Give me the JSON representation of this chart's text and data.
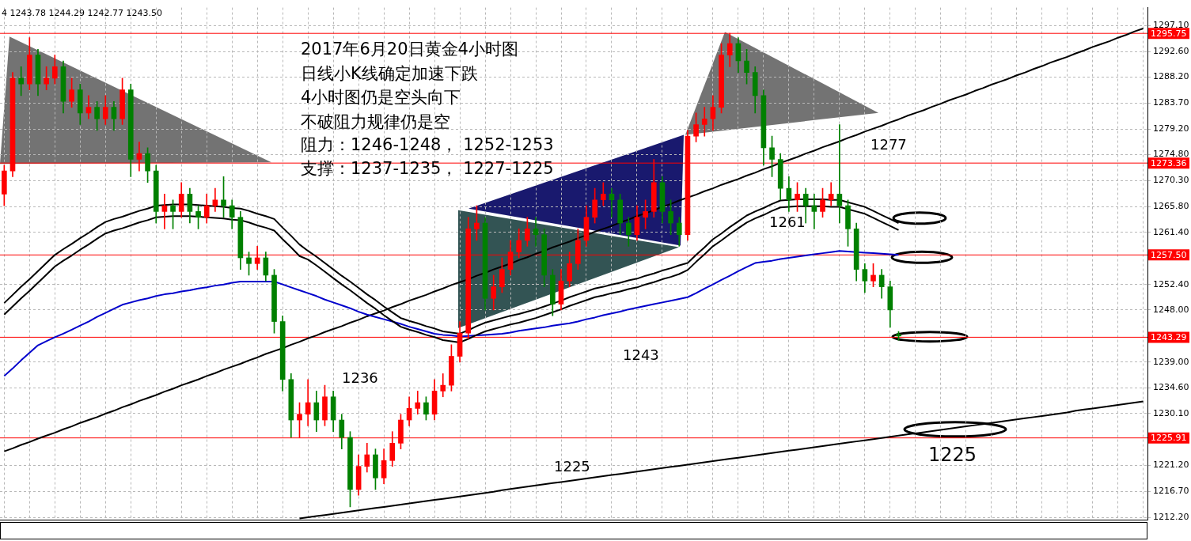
{
  "chart_data": {
    "type": "candlestick",
    "title": "2017年6月20日黄金4小时图",
    "annotations": [
      "4 1243.78 1244.29 1242.77 1243.50",
      "日线小K线确定加速下跌",
      "4小时图仍是空头向下",
      "不破阻力规律仍是空",
      "阻力：1246-1248， 1252-1253",
      "支撑：1237-1235， 1227-1225",
      "1277",
      "1261",
      "1243",
      "1236",
      "1225",
      "1225"
    ],
    "categories": [
      null,
      null,
      null,
      null,
      null,
      null,
      null,
      null,
      null,
      null,
      null,
      null,
      null,
      null,
      null,
      null,
      null,
      null,
      null,
      null,
      null,
      null,
      null,
      null,
      null,
      null,
      null,
      null,
      null,
      null,
      null,
      null,
      null,
      null,
      null,
      null,
      null,
      null,
      null,
      null,
      null,
      null,
      null,
      null,
      null,
      null,
      null,
      null,
      null,
      null,
      null,
      null,
      null,
      null,
      null,
      null,
      null,
      null,
      null,
      null,
      null,
      null,
      null,
      null,
      null,
      null,
      null,
      null,
      null,
      null,
      null,
      null,
      null,
      null,
      null,
      null,
      null,
      null,
      null,
      null,
      null,
      null,
      null,
      null,
      null,
      null,
      null,
      null,
      null,
      null,
      null,
      null,
      null,
      null,
      null,
      null,
      null,
      null,
      null,
      null,
      null,
      null,
      null,
      null,
      null,
      null,
      null,
      null,
      null,
      null,
      null,
      null,
      null,
      null,
      null,
      null,
      null,
      null,
      null,
      null,
      null,
      null,
      null,
      null,
      null,
      null,
      null,
      null,
      null,
      null,
      null,
      null,
      null,
      null,
      null,
      null
    ],
    "ohlc": [
      [
        1268,
        1273,
        1266,
        1272
      ],
      [
        1272,
        1289,
        1271,
        1288
      ],
      [
        1288,
        1290,
        1285,
        1287
      ],
      [
        1287,
        1295,
        1286,
        1292
      ],
      [
        1292,
        1293,
        1285,
        1287
      ],
      [
        1287,
        1290,
        1286,
        1288
      ],
      [
        1288,
        1292,
        1287,
        1290
      ],
      [
        1290,
        1291,
        1282,
        1284
      ],
      [
        1284,
        1288,
        1283,
        1286
      ],
      [
        1286,
        1287,
        1280,
        1282
      ],
      [
        1282,
        1285,
        1281,
        1283
      ],
      [
        1283,
        1284,
        1279,
        1281
      ],
      [
        1281,
        1285,
        1280,
        1283
      ],
      [
        1283,
        1284,
        1279,
        1281
      ],
      [
        1281,
        1288,
        1280,
        1286
      ],
      [
        1286,
        1287,
        1271,
        1274
      ],
      [
        1274,
        1277,
        1272,
        1275
      ],
      [
        1275,
        1276,
        1270,
        1272
      ],
      [
        1272,
        1273,
        1263,
        1265
      ],
      [
        1265,
        1268,
        1262,
        1266
      ],
      [
        1266,
        1267,
        1262,
        1265
      ],
      [
        1265,
        1270,
        1264,
        1268
      ],
      [
        1268,
        1269,
        1263,
        1265
      ],
      [
        1265,
        1266,
        1262,
        1264
      ],
      [
        1264,
        1268,
        1263,
        1266
      ],
      [
        1266,
        1269,
        1265,
        1267
      ],
      [
        1267,
        1271,
        1264,
        1266
      ],
      [
        1266,
        1267,
        1262,
        1264
      ],
      [
        1264,
        1265,
        1255,
        1257
      ],
      [
        1257,
        1258,
        1254,
        1256
      ],
      [
        1256,
        1259,
        1255,
        1257
      ],
      [
        1257,
        1258,
        1253,
        1254
      ],
      [
        1254,
        1255,
        1244,
        1246
      ],
      [
        1246,
        1247,
        1234,
        1236
      ],
      [
        1236,
        1237,
        1226,
        1229
      ],
      [
        1229,
        1232,
        1226,
        1230
      ],
      [
        1230,
        1236,
        1228,
        1232
      ],
      [
        1232,
        1234,
        1227,
        1229
      ],
      [
        1229,
        1235,
        1228,
        1233
      ],
      [
        1233,
        1234,
        1227,
        1229
      ],
      [
        1229,
        1230,
        1224,
        1226
      ],
      [
        1226,
        1227,
        1214,
        1217
      ],
      [
        1217,
        1223,
        1216,
        1221
      ],
      [
        1221,
        1225,
        1220,
        1223
      ],
      [
        1223,
        1224,
        1217,
        1219
      ],
      [
        1219,
        1224,
        1218,
        1222
      ],
      [
        1222,
        1227,
        1221,
        1225
      ],
      [
        1225,
        1230,
        1224,
        1229
      ],
      [
        1229,
        1233,
        1228,
        1231
      ],
      [
        1231,
        1234,
        1230,
        1232
      ],
      [
        1232,
        1233,
        1229,
        1230
      ],
      [
        1230,
        1236,
        1229,
        1234
      ],
      [
        1234,
        1237,
        1233,
        1235
      ],
      [
        1235,
        1242,
        1234,
        1240
      ],
      [
        1240,
        1246,
        1239,
        1244
      ],
      [
        1244,
        1264,
        1243,
        1262
      ],
      [
        1262,
        1266,
        1260,
        1263
      ],
      [
        1263,
        1264,
        1248,
        1250
      ],
      [
        1250,
        1254,
        1248,
        1252
      ],
      [
        1252,
        1257,
        1251,
        1255
      ],
      [
        1255,
        1260,
        1254,
        1258
      ],
      [
        1258,
        1262,
        1257,
        1260
      ],
      [
        1260,
        1264,
        1259,
        1262
      ],
      [
        1262,
        1264,
        1259,
        1261
      ],
      [
        1261,
        1262,
        1252,
        1254
      ],
      [
        1254,
        1255,
        1247,
        1249
      ],
      [
        1249,
        1255,
        1248,
        1253
      ],
      [
        1253,
        1258,
        1252,
        1256
      ],
      [
        1256,
        1262,
        1255,
        1260
      ],
      [
        1260,
        1266,
        1259,
        1264
      ],
      [
        1264,
        1269,
        1263,
        1267
      ],
      [
        1267,
        1270,
        1266,
        1268
      ],
      [
        1268,
        1269,
        1264,
        1267
      ],
      [
        1267,
        1268,
        1261,
        1263
      ],
      [
        1263,
        1264,
        1259,
        1261
      ],
      [
        1261,
        1266,
        1260,
        1264
      ],
      [
        1264,
        1267,
        1262,
        1265
      ],
      [
        1265,
        1274,
        1264,
        1270
      ],
      [
        1270,
        1271,
        1263,
        1265
      ],
      [
        1265,
        1267,
        1261,
        1263
      ],
      [
        1263,
        1264,
        1259,
        1261
      ],
      [
        1261,
        1279,
        1260,
        1278
      ],
      [
        1278,
        1282,
        1277,
        1280
      ],
      [
        1280,
        1283,
        1278,
        1281
      ],
      [
        1281,
        1285,
        1279,
        1283
      ],
      [
        1283,
        1294,
        1282,
        1292
      ],
      [
        1292,
        1295.75,
        1290,
        1294
      ],
      [
        1294,
        1295,
        1289,
        1291
      ],
      [
        1291,
        1293,
        1287,
        1289
      ],
      [
        1289,
        1290,
        1282,
        1285
      ],
      [
        1285,
        1286,
        1273,
        1276
      ],
      [
        1276,
        1278,
        1271,
        1274
      ],
      [
        1274,
        1275,
        1267,
        1269
      ],
      [
        1269,
        1271,
        1265,
        1267
      ],
      [
        1267,
        1270,
        1265,
        1268
      ],
      [
        1268,
        1269,
        1263,
        1266
      ],
      [
        1266,
        1268,
        1262,
        1265
      ],
      [
        1265,
        1269,
        1264,
        1267
      ],
      [
        1267,
        1270,
        1266,
        1268
      ],
      [
        1268,
        1280,
        1263,
        1266
      ],
      [
        1266,
        1267,
        1259,
        1262
      ],
      [
        1262,
        1263,
        1253,
        1255
      ],
      [
        1255,
        1256,
        1251,
        1253
      ],
      [
        1253,
        1256,
        1252,
        1254
      ],
      [
        1254,
        1255,
        1250,
        1252
      ],
      [
        1252,
        1253,
        1245,
        1248
      ],
      [
        1243.78,
        1244.29,
        1242.77,
        1243.5
      ],
      null,
      null,
      null,
      null,
      null,
      null,
      null,
      null,
      null,
      null,
      null,
      null,
      null,
      null,
      null,
      null,
      null,
      null,
      null,
      null,
      null,
      null,
      null,
      null,
      null,
      null,
      null,
      null,
      null
    ],
    "colors": [
      "#ff0000",
      "#ff0000",
      "#008000",
      "#ff0000",
      "#008000",
      "#ff0000",
      "#ff0000",
      "#008000",
      "#ff0000",
      "#008000",
      "#ff0000",
      "#008000",
      "#ff0000",
      "#008000",
      "#ff0000",
      "#008000",
      "#ff0000",
      "#008000",
      "#008000",
      "#ff0000",
      "#008000",
      "#ff0000",
      "#008000",
      "#008000",
      "#ff0000",
      "#ff0000",
      "#008000",
      "#008000",
      "#008000",
      "#008000",
      "#ff0000",
      "#008000",
      "#008000",
      "#008000",
      "#008000",
      "#ff0000",
      "#ff0000",
      "#008000",
      "#ff0000",
      "#008000",
      "#008000",
      "#008000",
      "#ff0000",
      "#ff0000",
      "#008000",
      "#ff0000",
      "#ff0000",
      "#ff0000",
      "#ff0000",
      "#ff0000",
      "#008000",
      "#ff0000",
      "#ff0000",
      "#ff0000",
      "#ff0000",
      "#ff0000",
      "#ff0000",
      "#008000",
      "#ff0000",
      "#ff0000",
      "#ff0000",
      "#ff0000",
      "#ff0000",
      "#008000",
      "#008000",
      "#008000",
      "#ff0000",
      "#ff0000",
      "#ff0000",
      "#ff0000",
      "#ff0000",
      "#ff0000",
      "#008000",
      "#008000",
      "#008000",
      "#ff0000",
      "#ff0000",
      "#ff0000",
      "#008000",
      "#008000",
      "#008000",
      "#ff0000",
      "#ff0000",
      "#ff0000",
      "#ff0000",
      "#ff0000",
      "#ff0000",
      "#008000",
      "#008000",
      "#008000",
      "#008000",
      "#008000",
      "#008000",
      "#008000",
      "#ff0000",
      "#008000",
      "#008000",
      "#ff0000",
      "#ff0000",
      "#008000",
      "#008000",
      "#008000",
      "#008000",
      "#ff0000",
      "#008000",
      "#008000",
      "#008000",
      null,
      null,
      null,
      null,
      null,
      null,
      null,
      null,
      null,
      null,
      null,
      null,
      null,
      null,
      null,
      null,
      null,
      null,
      null,
      null,
      null,
      null,
      null,
      null,
      null,
      null,
      null,
      null,
      null
    ],
    "series": [
      {
        "type": "line",
        "color": "#000000",
        "values": [
          1249.2,
          1250.6,
          1252.0,
          1253.3,
          1254.7,
          1256.1,
          1257.5,
          1258.5,
          1259.4,
          1260.4,
          1261.3,
          1262.3,
          1263.2,
          1263.7,
          1264.1,
          1264.6,
          1265.1,
          1265.5,
          1266.0,
          1266.1,
          1266.2,
          1266.2,
          1266.2,
          1266.1,
          1266.0,
          1265.9,
          1265.8,
          1265.6,
          1265.5,
          1265.1,
          1264.6,
          1264.2,
          1263.7,
          1262.2,
          1260.8,
          1259.3,
          1258.2,
          1257.2,
          1256.1,
          1255.0,
          1253.9,
          1252.9,
          1251.8,
          1250.7,
          1249.7,
          1248.6,
          1247.6,
          1246.6,
          1246.1,
          1245.7,
          1245.2,
          1244.8,
          1244.3,
          1244.1,
          1243.9,
          1244.5,
          1245.2,
          1245.8,
          1246.2,
          1246.6,
          1247.0,
          1247.3,
          1247.7,
          1248.1,
          1248.6,
          1249.1,
          1249.6,
          1250.2,
          1250.7,
          1251.2,
          1251.7,
          1252.0,
          1252.4,
          1252.7,
          1253.1,
          1253.4,
          1253.9,
          1254.3,
          1254.8,
          1255.2,
          1255.7,
          1256.1,
          1257.5,
          1258.8,
          1260.2,
          1261.2,
          1262.3,
          1263.3,
          1264.3,
          1265.0,
          1265.6,
          1266.3,
          1266.9,
          1267.0,
          1267.1,
          1267.1,
          1267.1,
          1267.1,
          1267.0,
          1267.0,
          1266.6,
          1266.2,
          1265.8,
          1265.1,
          1264.4,
          1263.7,
          1263.0,
          null,
          null,
          null,
          null,
          null,
          null,
          null,
          null,
          null,
          null,
          null,
          null,
          null,
          null,
          null,
          null,
          null,
          null,
          null,
          null,
          null,
          null,
          null,
          null,
          null,
          null,
          null,
          null,
          null
        ]
      },
      {
        "type": "line",
        "color": "#000000",
        "values": [
          1247.2,
          1248.6,
          1250.0,
          1251.3,
          1252.7,
          1254.1,
          1255.5,
          1256.5,
          1257.4,
          1258.4,
          1259.3,
          1260.3,
          1261.2,
          1261.7,
          1262.1,
          1262.6,
          1263.1,
          1263.5,
          1264.0,
          1264.1,
          1264.2,
          1264.2,
          1264.2,
          1264.1,
          1264.0,
          1263.9,
          1263.8,
          1263.6,
          1263.5,
          1263.1,
          1262.6,
          1262.2,
          1261.7,
          1260.2,
          1258.8,
          1257.3,
          1256.7,
          1255.7,
          1254.6,
          1253.5,
          1252.4,
          1251.4,
          1250.3,
          1249.2,
          1248.2,
          1247.1,
          1246.1,
          1245.1,
          1244.6,
          1244.2,
          1243.7,
          1243.3,
          1242.8,
          1242.6,
          1242.4,
          1243.0,
          1243.7,
          1244.3,
          1244.7,
          1245.1,
          1245.5,
          1245.8,
          1246.2,
          1246.6,
          1247.1,
          1247.6,
          1248.1,
          1248.7,
          1249.2,
          1249.7,
          1250.2,
          1250.5,
          1250.9,
          1251.2,
          1251.6,
          1251.9,
          1252.4,
          1252.8,
          1253.3,
          1253.7,
          1254.2,
          1254.9,
          1256.3,
          1257.6,
          1259.0,
          1260.0,
          1261.1,
          1262.1,
          1263.1,
          1263.8,
          1264.4,
          1265.1,
          1265.7,
          1265.8,
          1265.9,
          1265.9,
          1265.9,
          1265.9,
          1265.8,
          1265.8,
          1265.4,
          1265.0,
          1264.6,
          1263.9,
          1263.2,
          1262.5,
          1261.8,
          null,
          null,
          null,
          null,
          null,
          null,
          null,
          null,
          null,
          null,
          null,
          null,
          null,
          null,
          null,
          null,
          null,
          null,
          null,
          null,
          null,
          null,
          null,
          null,
          null,
          null,
          null,
          null,
          null
        ]
      },
      {
        "type": "line",
        "color": "#0000cc",
        "values": [
          1236.6,
          1237.9,
          1239.3,
          1240.6,
          1241.9,
          1242.6,
          1243.3,
          1243.9,
          1244.6,
          1245.3,
          1246.0,
          1246.8,
          1247.5,
          1248.2,
          1248.9,
          1249.3,
          1249.7,
          1250.0,
          1250.4,
          1250.7,
          1250.9,
          1251.2,
          1251.4,
          1251.7,
          1251.9,
          1252.2,
          1252.4,
          1252.7,
          1252.9,
          1252.9,
          1252.9,
          1252.9,
          1252.9,
          1252.4,
          1251.9,
          1251.4,
          1250.9,
          1250.4,
          1249.8,
          1249.3,
          1248.8,
          1248.3,
          1247.7,
          1247.2,
          1246.8,
          1246.4,
          1246.0,
          1245.6,
          1245.1,
          1244.7,
          1244.3,
          1243.9,
          1243.7,
          1243.6,
          1243.4,
          1243.5,
          1243.6,
          1243.7,
          1243.8,
          1243.9,
          1244.1,
          1244.4,
          1244.6,
          1244.8,
          1245.0,
          1245.3,
          1245.5,
          1245.7,
          1246.0,
          1246.4,
          1246.7,
          1247.1,
          1247.4,
          1247.7,
          1248.1,
          1248.4,
          1248.7,
          1249.0,
          1249.3,
          1249.6,
          1249.9,
          1250.2,
          1250.9,
          1251.7,
          1252.4,
          1253.2,
          1253.9,
          1254.7,
          1255.4,
          1256.1,
          1256.3,
          1256.5,
          1256.8,
          1257.0,
          1257.2,
          1257.4,
          1257.6,
          1257.8,
          1258.0,
          1258.2,
          1258.1,
          1258.0,
          1257.9,
          1257.8,
          1257.7,
          1257.6,
          1257.5,
          null,
          null,
          null,
          null,
          null,
          null,
          null,
          null,
          null,
          null,
          null,
          null,
          null,
          null,
          null,
          null,
          null,
          null,
          null,
          null,
          null,
          null,
          null,
          null,
          null,
          null,
          null,
          null,
          null
        ]
      },
      {
        "type": "line",
        "color": "#000000",
        "values": [
          1223.6,
          1224.1,
          1224.7,
          1225.2,
          1225.8,
          1226.3,
          1226.8,
          1227.4,
          1227.9,
          1228.5,
          1229.0,
          1229.5,
          1230.1,
          1230.6,
          1231.2,
          1231.7,
          1232.3,
          1232.8,
          1233.3,
          1233.9,
          1234.4,
          1235.0,
          1235.5,
          1236.0,
          1236.6,
          1237.1,
          1237.7,
          1238.2,
          1238.7,
          1239.3,
          1239.8,
          1240.4,
          1240.9,
          1241.4,
          1242.0,
          1242.5,
          1243.1,
          1243.6,
          1244.2,
          1244.7,
          1245.2,
          1245.8,
          1246.3,
          1246.9,
          1247.4,
          1247.9,
          1248.5,
          1249.0,
          1249.6,
          1250.1,
          1250.6,
          1251.2,
          1251.7,
          1252.3,
          1252.8,
          1253.3,
          1253.9,
          1254.4,
          1255.0,
          1255.5,
          1256.0,
          1256.6,
          1257.1,
          1257.7,
          1258.2,
          1258.8,
          1259.3,
          1259.8,
          1260.4,
          1260.9,
          1261.5,
          1262.0,
          1262.5,
          1263.1,
          1263.6,
          1264.2,
          1264.7,
          1265.2,
          1265.8,
          1266.3,
          1266.9,
          1267.4,
          1267.9,
          1268.5,
          1269.0,
          1269.6,
          1270.1,
          1270.6,
          1271.2,
          1271.7,
          1272.3,
          1272.8,
          1273.4,
          1273.9,
          1274.4,
          1275.0,
          1275.5,
          1276.1,
          1276.6,
          1277.1,
          1277.7,
          1278.2,
          1278.8,
          1279.3,
          1279.8,
          1280.4,
          1280.9,
          1281.5,
          1282.0,
          1282.5,
          1283.1,
          1283.6,
          1284.2,
          1284.7,
          1285.2,
          1285.8,
          1286.3,
          1286.9,
          1287.4,
          1287.9,
          1288.5,
          1289.0,
          1289.6,
          1290.1,
          1290.7,
          1291.2,
          1291.7,
          1292.3,
          1292.8,
          1293.4,
          1293.9,
          1294.4,
          1295.0,
          1295.5,
          1296.1,
          1296.6
        ]
      },
      {
        "type": "line",
        "color": "#000000",
        "values": [
          null,
          null,
          null,
          null,
          null,
          null,
          null,
          null,
          null,
          null,
          null,
          null,
          null,
          null,
          null,
          null,
          null,
          null,
          null,
          null,
          null,
          null,
          null,
          null,
          null,
          null,
          null,
          null,
          null,
          null,
          null,
          null,
          null,
          null,
          null,
          1212.0,
          1212.2,
          1212.4,
          1212.6,
          1212.8,
          1213.0,
          1213.2,
          1213.4,
          1213.6,
          1213.8,
          1214.0,
          1214.2,
          1214.4,
          1214.6,
          1214.8,
          1215.0,
          1215.2,
          1215.4,
          1215.6,
          1215.8,
          1216.0,
          1216.2,
          1216.4,
          1216.6,
          1216.9,
          1217.1,
          1217.3,
          1217.5,
          1217.7,
          1217.9,
          1218.1,
          1218.3,
          1218.5,
          1218.7,
          1218.9,
          1219.1,
          1219.3,
          1219.5,
          1219.7,
          1219.9,
          1220.1,
          1220.3,
          1220.5,
          1220.7,
          1220.9,
          1221.1,
          1221.3,
          1221.5,
          1221.7,
          1221.9,
          1222.1,
          1222.3,
          1222.5,
          1222.7,
          1222.9,
          1223.1,
          1223.3,
          1223.5,
          1223.7,
          1223.9,
          1224.1,
          1224.3,
          1224.5,
          1224.7,
          1224.9,
          1225.1,
          1225.3,
          1225.5,
          1225.7,
          1225.9,
          1226.1,
          1226.3,
          1226.5,
          1226.7,
          1226.9,
          1227.1,
          1227.3,
          1227.5,
          1227.7,
          1227.9,
          1228.1,
          1228.3,
          1228.5,
          1228.7,
          1228.9,
          1229.1,
          1229.3,
          1229.5,
          1229.7,
          1229.9,
          1230.1,
          1230.3,
          1230.6,
          1230.8,
          1231.0,
          1231.2,
          1231.4,
          1231.6,
          1231.8,
          1232.0,
          1232.2
        ]
      }
    ],
    "ylim": [
      1211.8,
      1300.2
    ],
    "yticks": [
      {
        "value": 1297.1,
        "label": "1297.10"
      },
      {
        "value": 1292.6,
        "label": "1292.60"
      },
      {
        "value": 1288.2,
        "label": "1288.20"
      },
      {
        "value": 1283.7,
        "label": "1283.70"
      },
      {
        "value": 1279.2,
        "label": "1279.20"
      },
      {
        "value": 1274.8,
        "label": "1274.80"
      },
      {
        "value": 1270.3,
        "label": "1270.30"
      },
      {
        "value": 1265.8,
        "label": "1265.80"
      },
      {
        "value": 1261.4,
        "label": "1261.40"
      },
      {
        "value": 1252.4,
        "label": "1252.40"
      },
      {
        "value": 1248,
        "label": "1248.00"
      },
      {
        "value": 1239,
        "label": "1239.00"
      },
      {
        "value": 1234.6,
        "label": "1234.60"
      },
      {
        "value": 1230.1,
        "label": "1230.10"
      },
      {
        "value": 1221.2,
        "label": "1221.20"
      },
      {
        "value": 1216.7,
        "label": "1216.70"
      },
      {
        "value": 1212.2,
        "label": "1212.20"
      }
    ],
    "ref_lines": [
      {
        "axis": "y",
        "value": 1295.75,
        "label": "1295.75",
        "color": "#ff0000"
      },
      {
        "axis": "y",
        "value": 1273.36,
        "label": "1273.36",
        "color": "#ff0000"
      },
      {
        "axis": "y",
        "value": 1257.5,
        "label": "1257.50",
        "color": "#ff0000"
      },
      {
        "axis": "y",
        "value": 1243.29,
        "label": "1243.29",
        "color": "#ff0000"
      },
      {
        "axis": "y",
        "value": 1225.91,
        "label": "1225.91",
        "color": "#ff0000"
      }
    ],
    "grid": true,
    "tick_labels": "y"
  }
}
